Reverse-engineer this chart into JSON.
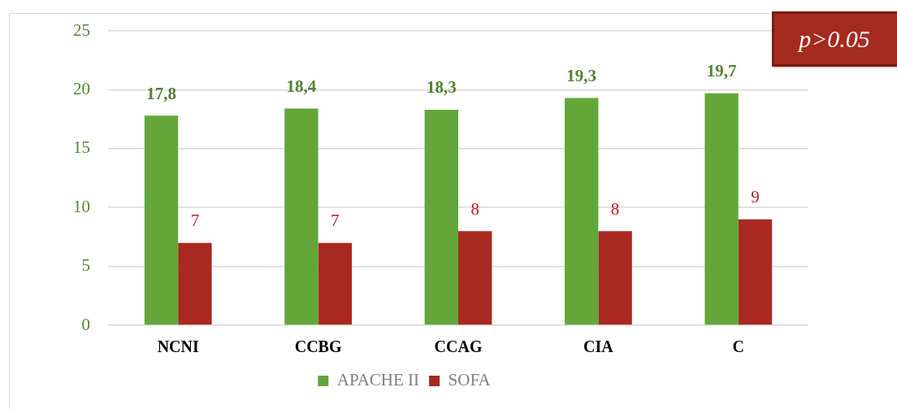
{
  "chart_data": {
    "type": "bar",
    "categories": [
      "NCNI",
      "CCBG",
      "CCAG",
      "CIA",
      "C"
    ],
    "series": [
      {
        "name": "APACHE II",
        "color": "#63a63a",
        "values": [
          17.8,
          18.4,
          18.3,
          19.3,
          19.7
        ],
        "value_labels": [
          "17,8",
          "18,4",
          "18,3",
          "19,3",
          "19,7"
        ]
      },
      {
        "name": "SOFA",
        "color": "#a8291f",
        "values": [
          7,
          7,
          8,
          8,
          9
        ],
        "value_labels": [
          "7",
          "7",
          "8",
          "8",
          "9"
        ]
      }
    ],
    "ylim": [
      0,
      25
    ],
    "yticks": [
      0,
      5,
      10,
      15,
      20,
      25
    ],
    "grid": "y",
    "legend": "bottom",
    "annotations": [
      "p>0.05"
    ]
  }
}
